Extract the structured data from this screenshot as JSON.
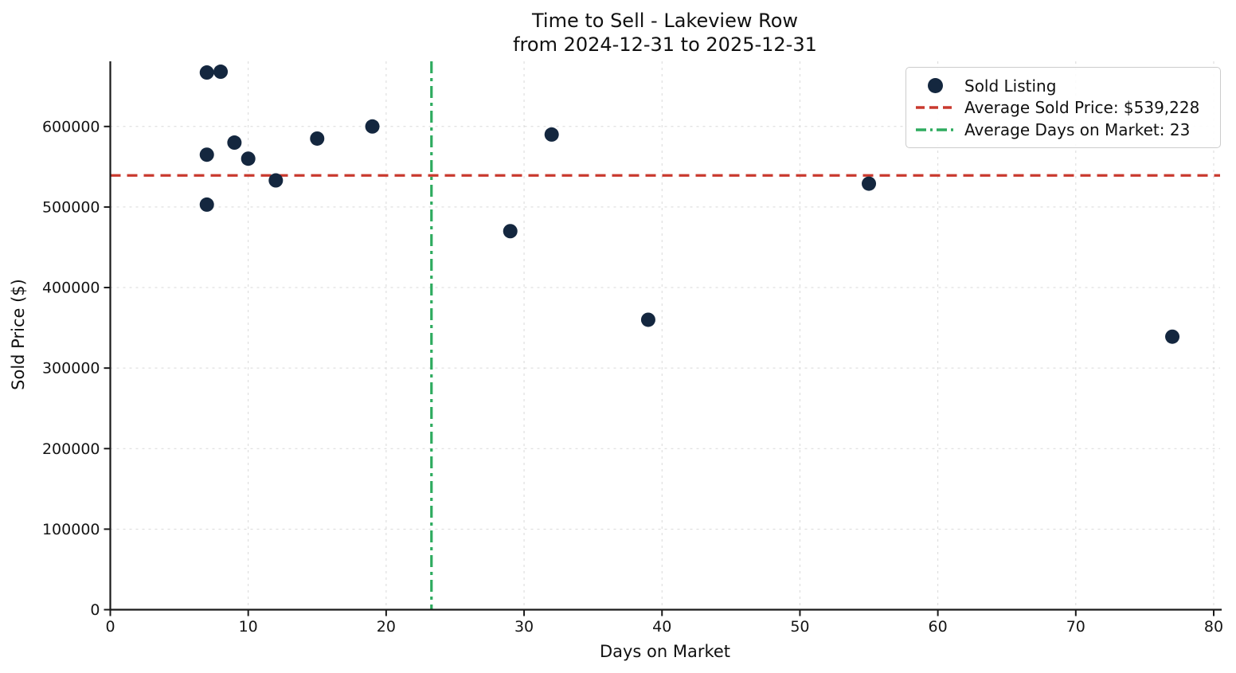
{
  "figure": {
    "title_line1": "Time to Sell - Lakeview Row",
    "title_line2": "from 2024-12-31 to 2025-12-31"
  },
  "axes": {
    "xlabel": "Days on Market",
    "ylabel": "Sold Price ($)"
  },
  "legend": {
    "sold_listing_label": "Sold Listing",
    "avg_price_label": "Average Sold Price: $539,228",
    "avg_days_label": "Average Days on Market: 23"
  },
  "colors": {
    "point": "#14273f",
    "avg_price_line": "#c9392e",
    "avg_days_line": "#2eab5f",
    "grid": "#d9d9d9",
    "spine": "#1a1a1a",
    "tick_text": "#151515"
  },
  "chart_data": {
    "type": "scatter",
    "title": "Time to Sell - Lakeview Row\nfrom 2024-12-31 to 2025-12-31",
    "xlabel": "Days on Market",
    "ylabel": "Sold Price ($)",
    "xlim": [
      0,
      80.5
    ],
    "ylim": [
      0,
      681000
    ],
    "xticks": [
      0,
      10,
      20,
      30,
      40,
      50,
      60,
      70,
      80
    ],
    "yticks": [
      0,
      100000,
      200000,
      300000,
      400000,
      500000,
      600000
    ],
    "grid": true,
    "legend_position": "upper right",
    "series_name": "Sold Listing",
    "points": [
      {
        "days": 7,
        "price": 667000
      },
      {
        "days": 8,
        "price": 668000
      },
      {
        "days": 7,
        "price": 565000
      },
      {
        "days": 9,
        "price": 580000
      },
      {
        "days": 10,
        "price": 560000
      },
      {
        "days": 12,
        "price": 533000
      },
      {
        "days": 7,
        "price": 503000
      },
      {
        "days": 15,
        "price": 585000
      },
      {
        "days": 19,
        "price": 600000
      },
      {
        "days": 29,
        "price": 470000
      },
      {
        "days": 32,
        "price": 590000
      },
      {
        "days": 39,
        "price": 360000
      },
      {
        "days": 55,
        "price": 529000
      },
      {
        "days": 77,
        "price": 339000
      }
    ],
    "average_sold_price": 539228,
    "average_days_on_market": 23
  }
}
